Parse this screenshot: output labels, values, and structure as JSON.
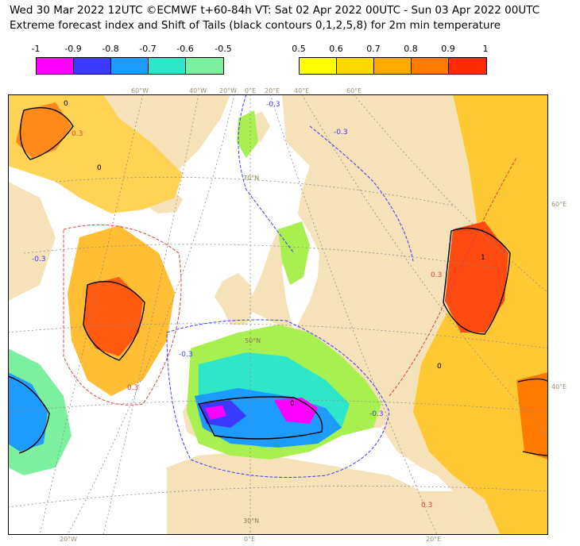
{
  "header": {
    "line1": "Wed 30 Mar 2022 12UTC ©ECMWF t+60-84h  VT: Sat 02 Apr 2022 00UTC - Sun 03 Apr 2022 00UTC",
    "line2": "Extreme forecast index and Shift of Tails (black contours 0,1,2,5,8) for 2m min temperature"
  },
  "legend_cold": {
    "labels": [
      "-1",
      "-0.9",
      "-0.8",
      "-0.7",
      "-0.6",
      "-0.5"
    ],
    "colors": [
      "#ff00ff",
      "#3b3bff",
      "#1e9bff",
      "#2ee6c8",
      "#7df0a0",
      "#a8f050"
    ]
  },
  "legend_warm": {
    "labels": [
      "0.5",
      "0.6",
      "0.7",
      "0.8",
      "0.9",
      "1"
    ],
    "colors": [
      "#ffff00",
      "#ffd800",
      "#ffaa00",
      "#ff7a00",
      "#ff2a00"
    ]
  },
  "map": {
    "colors": {
      "ocean": "#ffffff",
      "land": "#f5e2b8",
      "graticule": "#8c8c8c",
      "contour_neg": "#3c3cff",
      "contour_pos": "#e04040",
      "sot": "#000000"
    },
    "top_lon_labels": [
      "60°W",
      "40°W",
      "20°W",
      "0°E",
      "20°E",
      "40°E",
      "60°E"
    ],
    "bottom_lon_labels": [
      "20°W",
      "0°E",
      "20°E"
    ],
    "right_lat_labels": [
      "60°E",
      "40°E"
    ],
    "interior_lat_labels": [
      "70°N",
      "50°N",
      "30°N"
    ],
    "contour_labels": [
      "0.3",
      "-0.3"
    ],
    "sot_labels": [
      "0",
      "1"
    ]
  }
}
